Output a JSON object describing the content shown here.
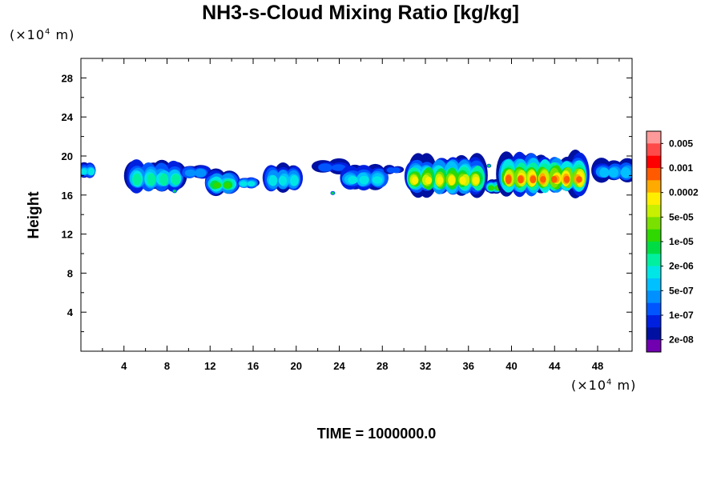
{
  "chart_data": {
    "type": "heatmap",
    "title": "NH3-s-Cloud Mixing Ratio [kg/kg]",
    "xunit": {
      "prefix": "(×10",
      "exp": "4",
      "suffix": " m)"
    },
    "yunit": {
      "prefix": "(×10",
      "exp": "4",
      "suffix": " m)"
    },
    "xlabel": "",
    "ylabel": "Height",
    "xlim": [
      0,
      51.2
    ],
    "ylim": [
      0,
      30
    ],
    "xticks": [
      4,
      8,
      12,
      16,
      20,
      24,
      28,
      32,
      36,
      40,
      44,
      48
    ],
    "yticks": [
      4,
      8,
      12,
      16,
      20,
      24,
      28
    ],
    "time_label": "TIME = 1000000.0",
    "colorbar": {
      "labels": [
        "0.005",
        "0.001",
        "0.0002",
        "5e-05",
        "1e-05",
        "2e-06",
        "5e-07",
        "1e-07",
        "2e-08"
      ],
      "colors_top_to_bottom": [
        "#ff9a9a",
        "#ff4a4a",
        "#ff0000",
        "#ff5a00",
        "#ffaa00",
        "#ffee00",
        "#c8f000",
        "#7ae000",
        "#2ed800",
        "#00dd44",
        "#00f0a0",
        "#00e6e6",
        "#00c0ff",
        "#0090ff",
        "#0055ff",
        "#0020e0",
        "#0010a0",
        "#7000b0"
      ]
    },
    "clouds": [
      {
        "x0": 0.0,
        "x1": 1.2,
        "ytop": 19.3,
        "ybot": 17.9,
        "peak": 6
      },
      {
        "x0": 4.7,
        "x1": 9.3,
        "ytop": 19.6,
        "ybot": 16.5,
        "peak": 7
      },
      {
        "x0": 9.6,
        "x1": 11.8,
        "ytop": 19.1,
        "ybot": 17.8,
        "peak": 4
      },
      {
        "x0": 12.0,
        "x1": 14.3,
        "ytop": 18.5,
        "ybot": 16.2,
        "peak": 9
      },
      {
        "x0": 14.8,
        "x1": 16.3,
        "ytop": 17.8,
        "ybot": 16.8,
        "peak": 6
      },
      {
        "x0": 17.3,
        "x1": 20.2,
        "ytop": 19.1,
        "ybot": 16.6,
        "peak": 6
      },
      {
        "x0": 22.2,
        "x1": 24.6,
        "ytop": 19.6,
        "ybot": 18.4,
        "peak": 3
      },
      {
        "x0": 24.5,
        "x1": 28.2,
        "ytop": 19.1,
        "ybot": 16.7,
        "peak": 6
      },
      {
        "x0": 28.5,
        "x1": 29.6,
        "ytop": 19.0,
        "ybot": 18.3,
        "peak": 3
      },
      {
        "x0": 30.5,
        "x1": 37.3,
        "ytop": 19.9,
        "ybot": 16.2,
        "peak": 12
      },
      {
        "x0": 37.8,
        "x1": 39.0,
        "ytop": 17.5,
        "ybot": 16.3,
        "peak": 9
      },
      {
        "x0": 39.2,
        "x1": 46.8,
        "ytop": 20.2,
        "ybot": 16.2,
        "peak": 14
      },
      {
        "x0": 48.0,
        "x1": 51.2,
        "ytop": 19.6,
        "ybot": 17.6,
        "peak": 5
      }
    ],
    "specks": [
      {
        "x": 8.7,
        "y": 16.4
      },
      {
        "x": 23.4,
        "y": 16.2
      },
      {
        "x": 37.9,
        "y": 19.0
      }
    ]
  }
}
